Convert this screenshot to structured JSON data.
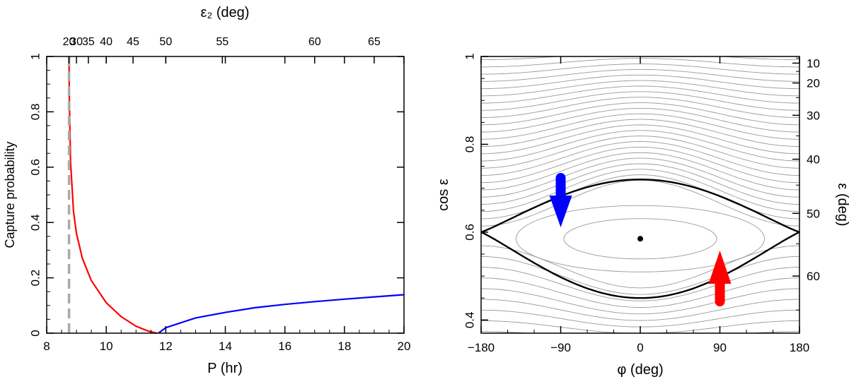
{
  "chart_data": [
    {
      "type": "line",
      "xlabel": "P (hr)",
      "ylabel": "Capture probability",
      "top_axis_label": "ε₂ (deg)",
      "xlim": [
        8,
        20
      ],
      "ylim": [
        0,
        1
      ],
      "x_ticks": [
        "8",
        "10",
        "12",
        "14",
        "16",
        "18",
        "20"
      ],
      "y_ticks": [
        "0",
        "0.2",
        "0.4",
        "0.6",
        "0.8",
        "1"
      ],
      "top_ticks": [
        {
          "label": "20",
          "P": 8.75
        },
        {
          "label": "30",
          "P": 9.0
        },
        {
          "label": "35",
          "P": 9.4
        },
        {
          "label": "40",
          "P": 10.0
        },
        {
          "label": "45",
          "P": 10.9
        },
        {
          "label": "50",
          "P": 12.0
        },
        {
          "label": "55",
          "P": 13.9
        },
        {
          "label": "60",
          "P": 17.0
        },
        {
          "label": "65",
          "P": 19.0
        }
      ],
      "series": [
        {
          "name": "red",
          "color": "#ff0000",
          "x": [
            8.75,
            8.76,
            8.8,
            8.9,
            9.0,
            9.2,
            9.5,
            10.0,
            10.5,
            11.0,
            11.4,
            11.7
          ],
          "y": [
            1.0,
            0.85,
            0.62,
            0.44,
            0.36,
            0.27,
            0.19,
            0.11,
            0.06,
            0.025,
            0.008,
            0.0
          ]
        },
        {
          "name": "blue",
          "color": "#0000ff",
          "x": [
            11.75,
            12.0,
            13.0,
            14.0,
            15.0,
            16.0,
            17.0,
            18.0,
            19.0,
            20.0
          ],
          "y": [
            0.0,
            0.02,
            0.055,
            0.075,
            0.092,
            0.104,
            0.114,
            0.123,
            0.131,
            0.139
          ]
        },
        {
          "name": "dashed-grey",
          "color": "#aaaaaa",
          "x": [
            8.75,
            8.75
          ],
          "y": [
            0,
            1
          ]
        }
      ]
    },
    {
      "type": "line",
      "xlabel": "φ (deg)",
      "ylabel": "cos ε",
      "right_axis_label": "ε (deg)",
      "xlim": [
        -180,
        180
      ],
      "ylim": [
        0.37,
        1.0
      ],
      "x_ticks": [
        "-180",
        "-90",
        "0",
        "90",
        "180"
      ],
      "y_ticks": [
        "0.4",
        "0.6",
        "0.8",
        "1"
      ],
      "right_ticks": [
        "10",
        "20",
        "30",
        "40",
        "50",
        "60"
      ],
      "separatrix": {
        "color": "#000000",
        "center": 0.585,
        "top": 0.72,
        "bottom": 0.45,
        "saddle": 0.6
      },
      "center_point": {
        "phi": 0,
        "cos_eps": 0.585
      },
      "arrows": [
        {
          "color": "#0000ff",
          "direction": "down",
          "phi": -90
        },
        {
          "color": "#ff0000",
          "direction": "up",
          "phi": 90
        }
      ],
      "contour_color": "#999999"
    }
  ]
}
